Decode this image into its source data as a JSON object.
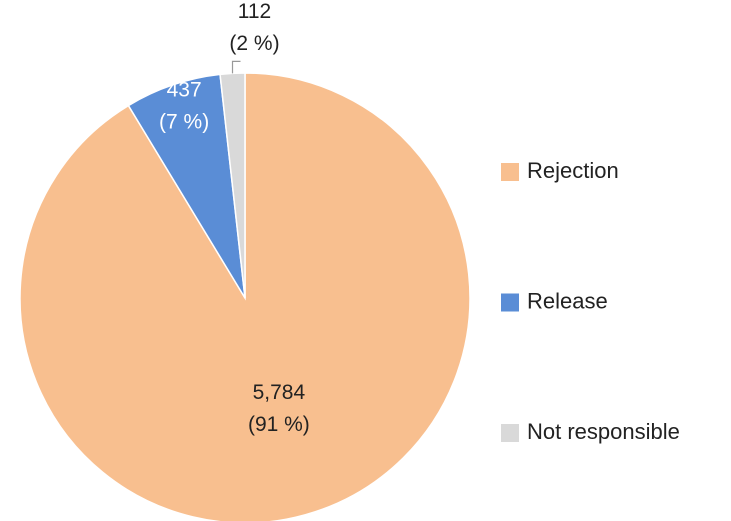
{
  "chart_data": {
    "type": "pie",
    "categories": [
      "Rejection",
      "Release",
      "Not responsible"
    ],
    "values": [
      5784,
      437,
      112
    ],
    "value_labels": [
      "5,784",
      "437",
      "112"
    ],
    "percentages": [
      91,
      7,
      2
    ],
    "percentage_labels": [
      "(91 %)",
      "(7 %)",
      "(2 %)"
    ],
    "colors": [
      "#f8bf8f",
      "#5a8dd6",
      "#d9d9d9"
    ],
    "legend": "right"
  }
}
